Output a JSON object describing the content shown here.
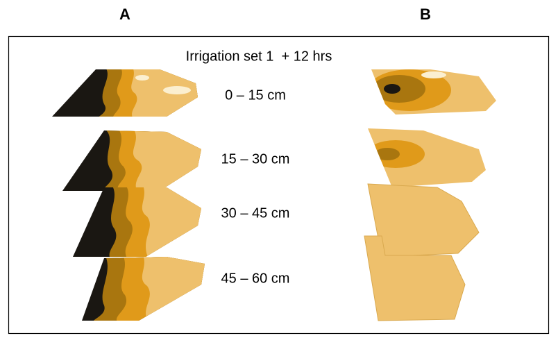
{
  "columns": [
    "A",
    "B"
  ],
  "title": "Irrigation set 1  + 12 hrs",
  "depths": [
    "0 – 15 cm",
    "15 – 30 cm",
    "30 – 45 cm",
    "45 – 60 cm"
  ]
}
